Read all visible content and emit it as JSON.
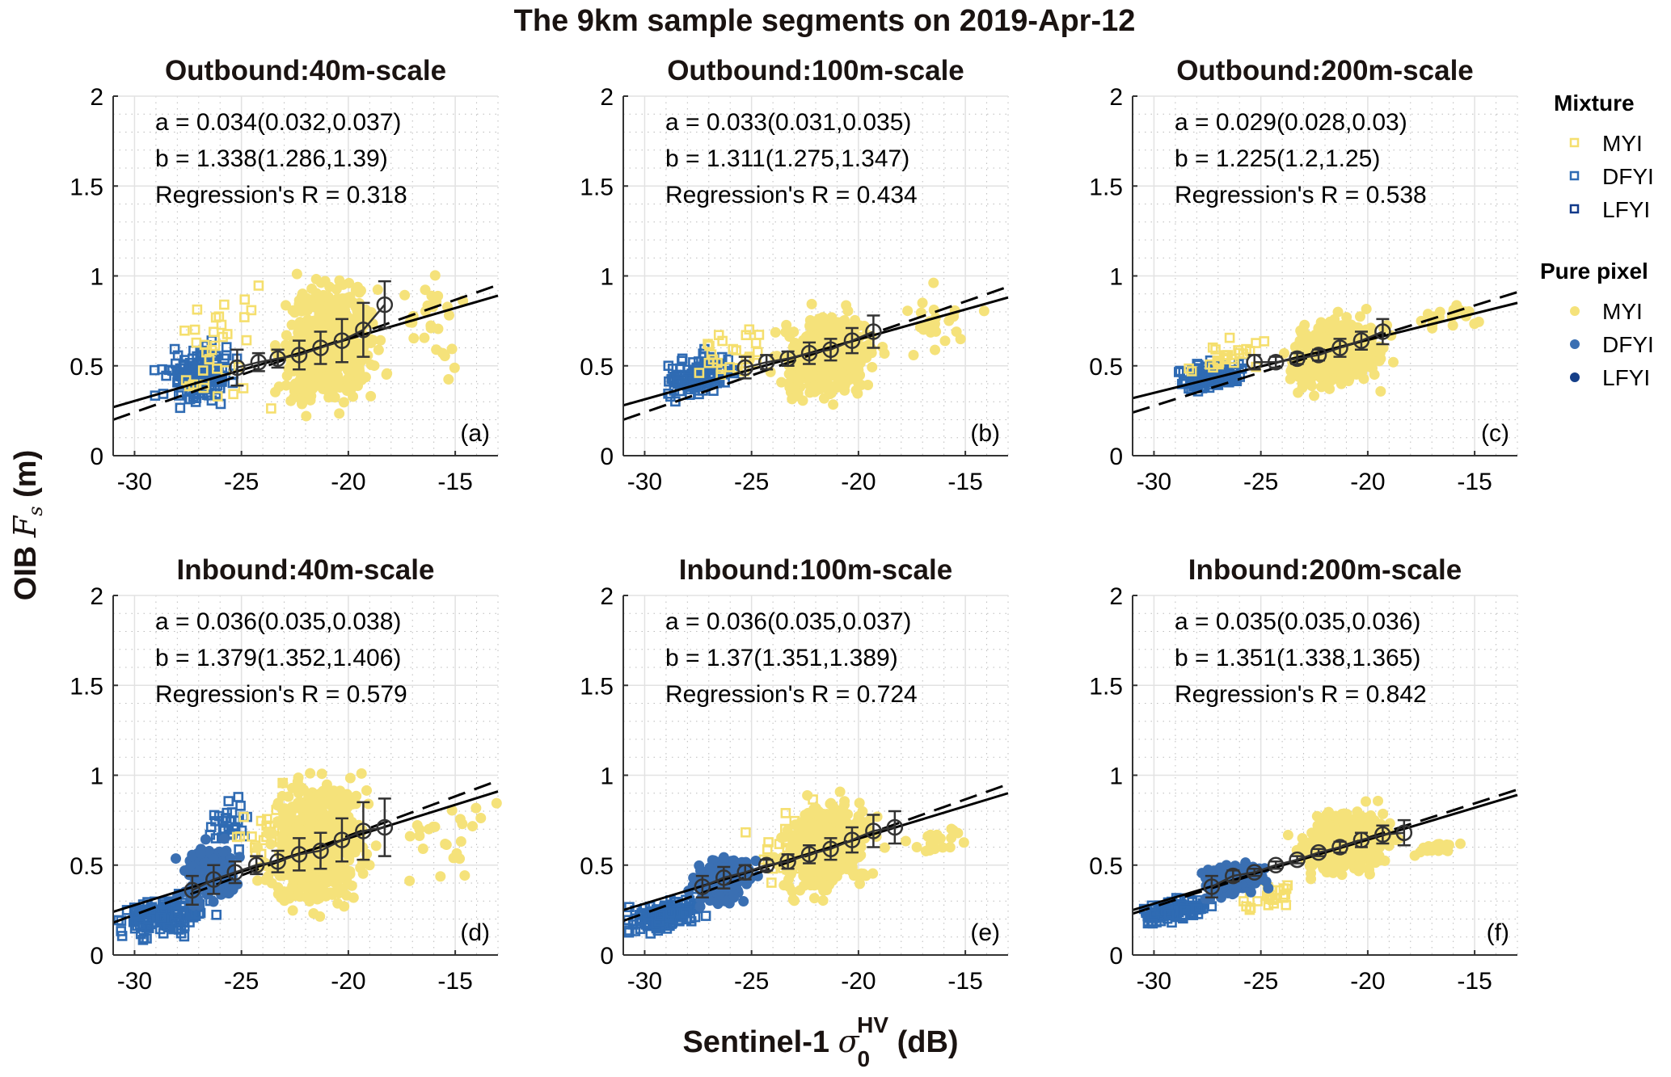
{
  "chart_data": {
    "type": "scatter",
    "title": "The 9km sample segments on 2019-Apr-12",
    "xlabel": "Sentinel-1 σ0HV (dB)",
    "xlabel_parts": {
      "prefix": "Sentinel-1 ",
      "symbol": "σ",
      "sub": "0",
      "sup": "HV",
      "suffix": " (dB)"
    },
    "ylabel": "OIB Fs (m)",
    "ylabel_parts": {
      "prefix": "OIB ",
      "symbol": "F",
      "sub": "s",
      "suffix": " (m)"
    },
    "xlim": [
      -31,
      -13
    ],
    "ylim": [
      0,
      2
    ],
    "xticks": [
      -30,
      -25,
      -20,
      -15
    ],
    "xtick_labels": [
      "-30",
      "-25",
      "-20",
      "-15"
    ],
    "yticks": [
      0,
      0.5,
      1,
      1.5,
      2
    ],
    "ytick_labels": [
      "0",
      "0.5",
      "1",
      "1.5",
      "2"
    ],
    "grid": true,
    "minor_grid": true,
    "legend": {
      "placement": "right",
      "groups": [
        {
          "title": "Mixture",
          "marker": "square-open",
          "items": [
            {
              "label": "MYI",
              "color": "#f5df6e"
            },
            {
              "label": "DFYI",
              "color": "#2f6bb3"
            },
            {
              "label": "LFYI",
              "color": "#123a8a"
            }
          ]
        },
        {
          "title": "Pure pixel",
          "marker": "circle-filled",
          "items": [
            {
              "label": "MYI",
              "color": "#f5e27a"
            },
            {
              "label": "DFYI",
              "color": "#3a6fb2"
            },
            {
              "label": "LFYI",
              "color": "#163f88"
            }
          ]
        }
      ]
    },
    "panels": [
      {
        "id": "a",
        "label": "(a)",
        "title": "Outbound:40m-scale",
        "annotations": [
          "a = 0.034(0.032,0.037)",
          "b = 1.338(1.286,1.39)",
          "Regression's R = 0.318"
        ],
        "fit_solid": [
          [
            -31,
            0.27
          ],
          [
            -13,
            0.89
          ]
        ],
        "fit_dashed": [
          [
            -31,
            0.2
          ],
          [
            -13,
            0.95
          ]
        ],
        "bin_means": [
          {
            "x": -25.2,
            "y": 0.49,
            "err": 0.1
          },
          {
            "x": -24.2,
            "y": 0.52,
            "err": 0.05
          },
          {
            "x": -23.3,
            "y": 0.54,
            "err": 0.05
          },
          {
            "x": -22.3,
            "y": 0.56,
            "err": 0.08
          },
          {
            "x": -21.3,
            "y": 0.6,
            "err": 0.09
          },
          {
            "x": -20.3,
            "y": 0.64,
            "err": 0.12
          },
          {
            "x": -19.3,
            "y": 0.7,
            "err": 0.15
          },
          {
            "x": -18.3,
            "y": 0.84,
            "err": 0.13
          }
        ],
        "clusters": [
          {
            "class": "pure-MYI",
            "cx": -21.0,
            "cy": 0.62,
            "sx": 1.6,
            "sy": 0.27,
            "n": 520
          },
          {
            "class": "pure-MYI",
            "cx": -16.5,
            "cy": 0.75,
            "sx": 1.6,
            "sy": 0.22,
            "n": 30
          },
          {
            "class": "mix-DFYI",
            "cx": -27.0,
            "cy": 0.45,
            "sx": 1.3,
            "sy": 0.12,
            "n": 140
          },
          {
            "class": "mix-MYI",
            "cx": -25.5,
            "cy": 0.55,
            "sx": 2.0,
            "sy": 0.25,
            "n": 35
          }
        ]
      },
      {
        "id": "b",
        "label": "(b)",
        "title": "Outbound:100m-scale",
        "annotations": [
          "a = 0.033(0.031,0.035)",
          "b = 1.311(1.275,1.347)",
          "Regression's R = 0.434"
        ],
        "fit_solid": [
          [
            -31,
            0.28
          ],
          [
            -13,
            0.88
          ]
        ],
        "fit_dashed": [
          [
            -31,
            0.2
          ],
          [
            -13,
            0.94
          ]
        ],
        "bin_means": [
          {
            "x": -25.3,
            "y": 0.49,
            "err": 0.06
          },
          {
            "x": -24.3,
            "y": 0.52,
            "err": 0.04
          },
          {
            "x": -23.3,
            "y": 0.54,
            "err": 0.04
          },
          {
            "x": -22.3,
            "y": 0.57,
            "err": 0.06
          },
          {
            "x": -21.3,
            "y": 0.59,
            "err": 0.06
          },
          {
            "x": -20.3,
            "y": 0.64,
            "err": 0.07
          },
          {
            "x": -19.3,
            "y": 0.69,
            "err": 0.09
          }
        ],
        "clusters": [
          {
            "class": "pure-MYI",
            "cx": -21.5,
            "cy": 0.55,
            "sx": 1.6,
            "sy": 0.18,
            "n": 460
          },
          {
            "class": "pure-MYI",
            "cx": -16.5,
            "cy": 0.75,
            "sx": 1.5,
            "sy": 0.15,
            "n": 25
          },
          {
            "class": "mix-DFYI",
            "cx": -27.3,
            "cy": 0.45,
            "sx": 1.2,
            "sy": 0.08,
            "n": 130
          },
          {
            "class": "mix-MYI",
            "cx": -26.0,
            "cy": 0.58,
            "sx": 1.5,
            "sy": 0.12,
            "n": 25
          }
        ]
      },
      {
        "id": "c",
        "label": "(c)",
        "title": "Outbound:200m-scale",
        "annotations": [
          "a = 0.029(0.028,0.03)",
          "b = 1.225(1.2,1.25)",
          "Regression's R = 0.538"
        ],
        "fit_solid": [
          [
            -31,
            0.32
          ],
          [
            -13,
            0.85
          ]
        ],
        "fit_dashed": [
          [
            -31,
            0.24
          ],
          [
            -13,
            0.91
          ]
        ],
        "bin_means": [
          {
            "x": -25.3,
            "y": 0.52,
            "err": 0.04
          },
          {
            "x": -24.3,
            "y": 0.52,
            "err": 0.03
          },
          {
            "x": -23.3,
            "y": 0.54,
            "err": 0.03
          },
          {
            "x": -22.3,
            "y": 0.56,
            "err": 0.03
          },
          {
            "x": -21.3,
            "y": 0.6,
            "err": 0.05
          },
          {
            "x": -20.3,
            "y": 0.64,
            "err": 0.05
          },
          {
            "x": -19.3,
            "y": 0.69,
            "err": 0.07
          }
        ],
        "clusters": [
          {
            "class": "pure-MYI",
            "cx": -21.5,
            "cy": 0.57,
            "sx": 1.5,
            "sy": 0.14,
            "n": 460
          },
          {
            "class": "pure-MYI",
            "cx": -16.0,
            "cy": 0.78,
            "sx": 1.3,
            "sy": 0.07,
            "n": 20
          },
          {
            "class": "mix-DFYI",
            "cx": -27.3,
            "cy": 0.45,
            "sx": 1.2,
            "sy": 0.06,
            "n": 130
          },
          {
            "class": "mix-MYI",
            "cx": -26.5,
            "cy": 0.55,
            "sx": 1.5,
            "sy": 0.07,
            "n": 25
          }
        ]
      },
      {
        "id": "d",
        "label": "(d)",
        "title": "Inbound:40m-scale",
        "annotations": [
          "a = 0.036(0.035,0.038)",
          "b = 1.379(1.352,1.406)",
          "Regression's R = 0.579"
        ],
        "fit_solid": [
          [
            -31,
            0.24
          ],
          [
            -13,
            0.91
          ]
        ],
        "fit_dashed": [
          [
            -31,
            0.18
          ],
          [
            -13,
            0.97
          ]
        ],
        "bin_means": [
          {
            "x": -27.3,
            "y": 0.36,
            "err": 0.08
          },
          {
            "x": -26.3,
            "y": 0.42,
            "err": 0.08
          },
          {
            "x": -25.3,
            "y": 0.46,
            "err": 0.06
          },
          {
            "x": -24.3,
            "y": 0.5,
            "err": 0.05
          },
          {
            "x": -23.3,
            "y": 0.52,
            "err": 0.06
          },
          {
            "x": -22.3,
            "y": 0.56,
            "err": 0.09
          },
          {
            "x": -21.3,
            "y": 0.58,
            "err": 0.1
          },
          {
            "x": -20.3,
            "y": 0.64,
            "err": 0.12
          },
          {
            "x": -19.3,
            "y": 0.69,
            "err": 0.16
          },
          {
            "x": -18.3,
            "y": 0.71,
            "err": 0.16
          }
        ],
        "clusters": [
          {
            "class": "pure-MYI",
            "cx": -21.5,
            "cy": 0.62,
            "sx": 1.7,
            "sy": 0.26,
            "n": 560
          },
          {
            "class": "pure-MYI",
            "cx": -15.5,
            "cy": 0.65,
            "sx": 1.5,
            "sy": 0.2,
            "n": 25
          },
          {
            "class": "pure-DFYI",
            "cx": -26.5,
            "cy": 0.45,
            "sx": 1.0,
            "sy": 0.12,
            "n": 160
          },
          {
            "class": "mix-DFYI",
            "cx": -28.5,
            "cy": 0.22,
            "sx": 1.6,
            "sy": 0.08,
            "n": 150
          },
          {
            "class": "mix-DFYI",
            "cx": -25.5,
            "cy": 0.75,
            "sx": 0.8,
            "sy": 0.12,
            "n": 30
          },
          {
            "class": "mix-MYI",
            "cx": -23.5,
            "cy": 0.7,
            "sx": 1.2,
            "sy": 0.2,
            "n": 30
          }
        ]
      },
      {
        "id": "e",
        "label": "(e)",
        "title": "Inbound:100m-scale",
        "annotations": [
          "a = 0.036(0.035,0.037)",
          "b = 1.37(1.351,1.389)",
          "Regression's R = 0.724"
        ],
        "fit_solid": [
          [
            -31,
            0.25
          ],
          [
            -13,
            0.9
          ]
        ],
        "fit_dashed": [
          [
            -31,
            0.19
          ],
          [
            -13,
            0.95
          ]
        ],
        "bin_means": [
          {
            "x": -27.3,
            "y": 0.38,
            "err": 0.06
          },
          {
            "x": -26.3,
            "y": 0.43,
            "err": 0.06
          },
          {
            "x": -25.3,
            "y": 0.46,
            "err": 0.04
          },
          {
            "x": -24.3,
            "y": 0.5,
            "err": 0.03
          },
          {
            "x": -23.3,
            "y": 0.52,
            "err": 0.04
          },
          {
            "x": -22.3,
            "y": 0.56,
            "err": 0.05
          },
          {
            "x": -21.3,
            "y": 0.59,
            "err": 0.06
          },
          {
            "x": -20.3,
            "y": 0.64,
            "err": 0.07
          },
          {
            "x": -19.3,
            "y": 0.69,
            "err": 0.09
          },
          {
            "x": -18.3,
            "y": 0.71,
            "err": 0.09
          }
        ],
        "clusters": [
          {
            "class": "pure-MYI",
            "cx": -21.5,
            "cy": 0.6,
            "sx": 1.6,
            "sy": 0.18,
            "n": 520
          },
          {
            "class": "pure-MYI",
            "cx": -16.0,
            "cy": 0.63,
            "sx": 1.4,
            "sy": 0.07,
            "n": 20
          },
          {
            "class": "pure-DFYI",
            "cx": -26.3,
            "cy": 0.42,
            "sx": 1.1,
            "sy": 0.1,
            "n": 180
          },
          {
            "class": "mix-DFYI",
            "cx": -29.0,
            "cy": 0.22,
            "sx": 1.3,
            "sy": 0.06,
            "n": 130
          },
          {
            "class": "mix-MYI",
            "cx": -23.0,
            "cy": 0.62,
            "sx": 1.5,
            "sy": 0.15,
            "n": 30
          }
        ]
      },
      {
        "id": "f",
        "label": "(f)",
        "title": "Inbound:200m-scale",
        "annotations": [
          "a = 0.035(0.035,0.036)",
          "b = 1.351(1.338,1.365)",
          "Regression's R = 0.842"
        ],
        "fit_solid": [
          [
            -31,
            0.25
          ],
          [
            -13,
            0.89
          ]
        ],
        "fit_dashed": [
          [
            -31,
            0.23
          ],
          [
            -13,
            0.92
          ]
        ],
        "bin_means": [
          {
            "x": -27.3,
            "y": 0.38,
            "err": 0.06
          },
          {
            "x": -26.3,
            "y": 0.44,
            "err": 0.03
          },
          {
            "x": -25.3,
            "y": 0.46,
            "err": 0.02
          },
          {
            "x": -24.3,
            "y": 0.5,
            "err": 0.02
          },
          {
            "x": -23.3,
            "y": 0.53,
            "err": 0.02
          },
          {
            "x": -22.3,
            "y": 0.57,
            "err": 0.02
          },
          {
            "x": -21.3,
            "y": 0.6,
            "err": 0.03
          },
          {
            "x": -20.3,
            "y": 0.64,
            "err": 0.04
          },
          {
            "x": -19.3,
            "y": 0.67,
            "err": 0.05
          },
          {
            "x": -18.3,
            "y": 0.68,
            "err": 0.07
          }
        ],
        "clusters": [
          {
            "class": "pure-MYI",
            "cx": -21.0,
            "cy": 0.62,
            "sx": 1.5,
            "sy": 0.12,
            "n": 480
          },
          {
            "class": "pure-MYI",
            "cx": -16.5,
            "cy": 0.6,
            "sx": 1.2,
            "sy": 0.03,
            "n": 20
          },
          {
            "class": "pure-DFYI",
            "cx": -26.3,
            "cy": 0.42,
            "sx": 1.1,
            "sy": 0.07,
            "n": 170
          },
          {
            "class": "mix-DFYI",
            "cx": -29.0,
            "cy": 0.25,
            "sx": 1.3,
            "sy": 0.05,
            "n": 110
          },
          {
            "class": "mix-MYI",
            "cx": -24.5,
            "cy": 0.33,
            "sx": 1.2,
            "sy": 0.06,
            "n": 25
          }
        ]
      }
    ]
  }
}
